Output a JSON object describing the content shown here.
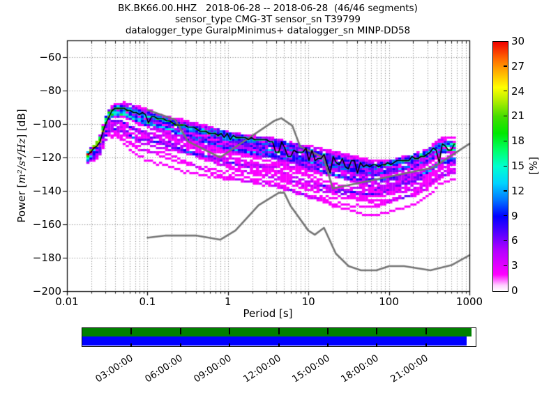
{
  "title": {
    "line1": "BK.BK66.00.HHZ   2018-06-28 -- 2018-06-28  (46/46 segments)",
    "line2": "sensor_type CMG-3T sensor_sn T39799",
    "line3": "datalogger_type GuralpMinimus+ datalogger_sn MINP-DD58"
  },
  "chart_data": {
    "type": "heatmap",
    "subtype": "ppsd-probabilistic-power-spectral-density",
    "xlabel": "Period [s]",
    "ylabel_prefix": "Power [",
    "ylabel_units": "m²/s⁴/Hz",
    "ylabel_suffix": "] [dB]",
    "xscale": "log",
    "xlim": [
      0.01,
      1000
    ],
    "ylim": [
      -200,
      -50
    ],
    "grid": true,
    "x_ticks": [
      {
        "v": 0.01,
        "label": "0.01"
      },
      {
        "v": 0.1,
        "label": "0.1"
      },
      {
        "v": 1,
        "label": "1"
      },
      {
        "v": 10,
        "label": "10"
      },
      {
        "v": 100,
        "label": "100"
      },
      {
        "v": 1000,
        "label": "1000"
      }
    ],
    "y_ticks": [
      {
        "v": -60,
        "label": "−60"
      },
      {
        "v": -80,
        "label": "−80"
      },
      {
        "v": -100,
        "label": "−100"
      },
      {
        "v": -120,
        "label": "−120"
      },
      {
        "v": -140,
        "label": "−140"
      },
      {
        "v": -160,
        "label": "−160"
      },
      {
        "v": -180,
        "label": "−180"
      },
      {
        "v": -200,
        "label": "−200"
      }
    ],
    "colorbar": {
      "label": "[%]",
      "min": 0,
      "max": 30,
      "ticks": [
        {
          "v": 0,
          "label": "0"
        },
        {
          "v": 3,
          "label": "3"
        },
        {
          "v": 6,
          "label": "6"
        },
        {
          "v": 9,
          "label": "9"
        },
        {
          "v": 12,
          "label": "12"
        },
        {
          "v": 15,
          "label": "15"
        },
        {
          "v": 18,
          "label": "18"
        },
        {
          "v": 21,
          "label": "21"
        },
        {
          "v": 24,
          "label": "24"
        },
        {
          "v": 27,
          "label": "27"
        },
        {
          "v": 30,
          "label": "30"
        }
      ],
      "stops": [
        [
          0,
          "#ffffff"
        ],
        [
          0.7,
          "#ffd0ff"
        ],
        [
          2,
          "#ff00ff"
        ],
        [
          5,
          "#b000ff"
        ],
        [
          7,
          "#5500ff"
        ],
        [
          9,
          "#0000ff"
        ],
        [
          11,
          "#0077ff"
        ],
        [
          13,
          "#00d4ff"
        ],
        [
          15,
          "#00ffd0"
        ],
        [
          17,
          "#00ff66"
        ],
        [
          19,
          "#00e800"
        ],
        [
          21,
          "#44dd00"
        ],
        [
          23,
          "#b8ee00"
        ],
        [
          24.5,
          "#ffff00"
        ],
        [
          26.5,
          "#ffaa00"
        ],
        [
          28,
          "#ff6600"
        ],
        [
          30,
          "#f00000"
        ]
      ]
    },
    "noise_models": {
      "color": "#757575",
      "nlnm": [
        [
          0.1,
          -168
        ],
        [
          0.17,
          -166.7
        ],
        [
          0.4,
          -166.7
        ],
        [
          0.8,
          -169.2
        ],
        [
          1.24,
          -163.7
        ],
        [
          2.4,
          -148.6
        ],
        [
          4.3,
          -141.1
        ],
        [
          5,
          -141.1
        ],
        [
          6,
          -149
        ],
        [
          10,
          -163.8
        ],
        [
          12,
          -166.2
        ],
        [
          15.6,
          -162.1
        ],
        [
          21.9,
          -177.5
        ],
        [
          31.6,
          -185
        ],
        [
          45,
          -187.5
        ],
        [
          70,
          -187.5
        ],
        [
          101,
          -185
        ],
        [
          154,
          -185
        ],
        [
          328,
          -187.5
        ],
        [
          600,
          -184.4
        ],
        [
          1000,
          -178.5
        ]
      ],
      "nhnm": [
        [
          0.1,
          -91.5
        ],
        [
          0.22,
          -97.4
        ],
        [
          0.32,
          -110.5
        ],
        [
          0.8,
          -120
        ],
        [
          3.8,
          -98
        ],
        [
          4.6,
          -96.5
        ],
        [
          6.3,
          -101
        ],
        [
          7.9,
          -113.5
        ],
        [
          15.4,
          -120
        ],
        [
          20,
          -138.5
        ],
        [
          354.8,
          -126
        ],
        [
          1000,
          -111.8
        ]
      ]
    },
    "mode_line_color": "#000000",
    "mode_line": [
      [
        0.018,
        -118
      ],
      [
        0.022,
        -113
      ],
      [
        0.026,
        -108
      ],
      [
        0.029,
        -99.5
      ],
      [
        0.033,
        -93
      ],
      [
        0.04,
        -90
      ],
      [
        0.05,
        -89.5
      ],
      [
        0.07,
        -91
      ],
      [
        0.1,
        -93.5
      ],
      [
        0.15,
        -95.5
      ],
      [
        0.25,
        -98.5
      ],
      [
        0.4,
        -101
      ],
      [
        0.7,
        -103.5
      ],
      [
        1,
        -105.5
      ],
      [
        2,
        -108.5
      ],
      [
        3.5,
        -110.5
      ],
      [
        5,
        -112.5
      ],
      [
        10,
        -116.5
      ],
      [
        20,
        -120
      ],
      [
        32,
        -122
      ],
      [
        50,
        -124
      ],
      [
        70,
        -125
      ],
      [
        100,
        -123.5
      ],
      [
        150,
        -121.5
      ],
      [
        200,
        -120
      ],
      [
        250,
        -118.5
      ],
      [
        300,
        -117
      ],
      [
        400,
        -113.5
      ],
      [
        450,
        -112
      ],
      [
        700,
        -112
      ]
    ],
    "histogram": {
      "segments_total": 46,
      "segments_used": 46,
      "period_log10_start": -1.74,
      "period_log10_end": 2.85,
      "period_step_octaves": 0.125,
      "db_bin_width": 1.25,
      "max_spread_db": 30,
      "upper_clip_db": 3.6,
      "seed": 12
    },
    "coverage": {
      "green_color": "#008000",
      "blue_color": "#0000ff",
      "green_fraction": 0.992,
      "blue_fraction": 0.978,
      "tick_hours": [
        3,
        6,
        9,
        12,
        15,
        18,
        21
      ],
      "tick_labels": [
        "03:00:00",
        "06:00:00",
        "09:00:00",
        "12:00:00",
        "15:00:00",
        "18:00:00",
        "21:00:00"
      ]
    }
  }
}
